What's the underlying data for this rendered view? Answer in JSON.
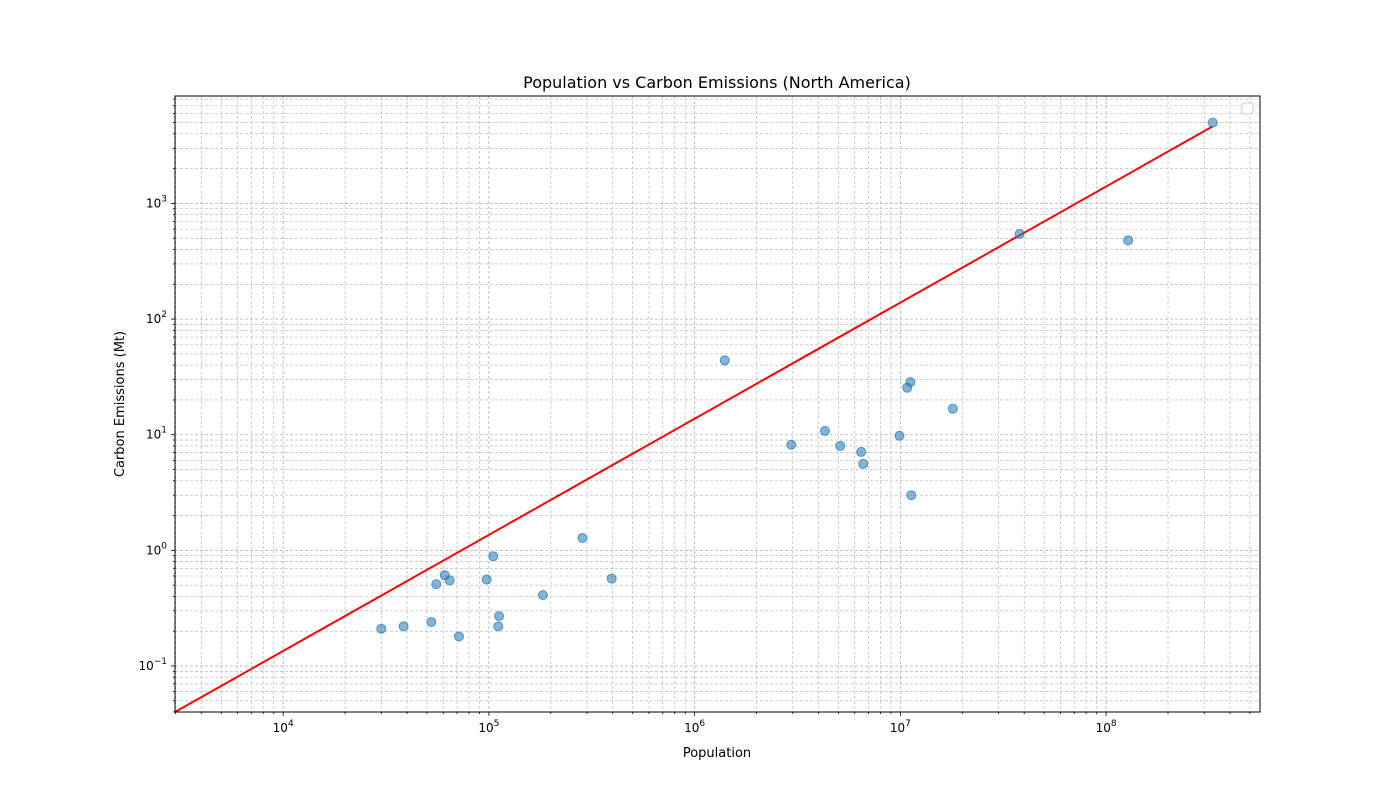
{
  "chart_data": {
    "type": "scatter",
    "title": "Population vs Carbon Emissions (North America)",
    "xlabel": "Population",
    "ylabel": "Carbon Emissions (Mt)",
    "xscale": "log",
    "yscale": "log",
    "xlim": [
      2980,
      560000000
    ],
    "ylim": [
      0.04,
      8500
    ],
    "grid": true,
    "legend": "top-right (empty)",
    "x_ticks": [
      {
        "value": 10000,
        "base": "10",
        "exp": "4"
      },
      {
        "value": 100000,
        "base": "10",
        "exp": "5"
      },
      {
        "value": 1000000,
        "base": "10",
        "exp": "6"
      },
      {
        "value": 10000000,
        "base": "10",
        "exp": "7"
      },
      {
        "value": 100000000,
        "base": "10",
        "exp": "8"
      }
    ],
    "y_ticks": [
      {
        "value": 0.1,
        "base": "10",
        "exp": "−1"
      },
      {
        "value": 1,
        "base": "10",
        "exp": "0"
      },
      {
        "value": 10,
        "base": "10",
        "exp": "1"
      },
      {
        "value": 100,
        "base": "10",
        "exp": "2"
      },
      {
        "value": 1000,
        "base": "10",
        "exp": "3"
      }
    ],
    "points": [
      {
        "x": 30000,
        "y": 0.21
      },
      {
        "x": 38500,
        "y": 0.22
      },
      {
        "x": 52500,
        "y": 0.24
      },
      {
        "x": 55500,
        "y": 0.51
      },
      {
        "x": 61000,
        "y": 0.61
      },
      {
        "x": 64500,
        "y": 0.55
      },
      {
        "x": 71500,
        "y": 0.18
      },
      {
        "x": 97500,
        "y": 0.56
      },
      {
        "x": 105000,
        "y": 0.89
      },
      {
        "x": 111000,
        "y": 0.22
      },
      {
        "x": 112000,
        "y": 0.27
      },
      {
        "x": 183000,
        "y": 0.41
      },
      {
        "x": 285000,
        "y": 1.28
      },
      {
        "x": 395000,
        "y": 0.57
      },
      {
        "x": 1400000,
        "y": 44
      },
      {
        "x": 2950000,
        "y": 8.2
      },
      {
        "x": 4300000,
        "y": 10.8
      },
      {
        "x": 5100000,
        "y": 8.0
      },
      {
        "x": 6450000,
        "y": 7.1
      },
      {
        "x": 6600000,
        "y": 5.6
      },
      {
        "x": 9900000,
        "y": 9.8
      },
      {
        "x": 10800000,
        "y": 25.5
      },
      {
        "x": 11200000,
        "y": 28.5
      },
      {
        "x": 11300000,
        "y": 3.0
      },
      {
        "x": 18000000,
        "y": 16.8
      },
      {
        "x": 38000000,
        "y": 545
      },
      {
        "x": 128000000,
        "y": 480
      },
      {
        "x": 330000000,
        "y": 5000
      }
    ],
    "trendline": {
      "x": [
        2980,
        330000000
      ],
      "y": [
        0.04,
        4650
      ]
    },
    "point_color": "#1f77b4",
    "line_color": "#ff0000"
  }
}
